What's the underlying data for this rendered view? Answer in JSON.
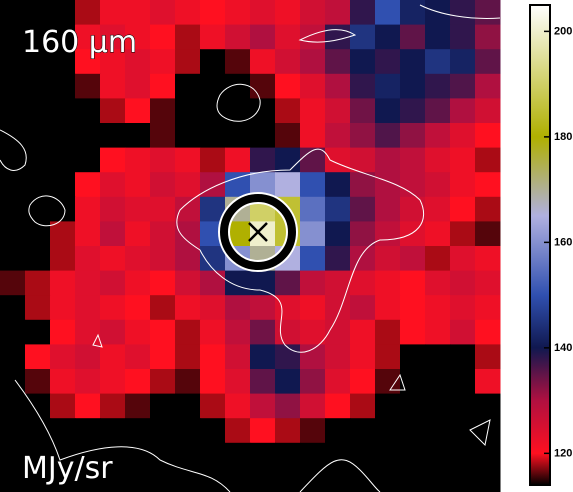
{
  "chart_data": {
    "type": "heatmap",
    "title": "160 μm",
    "annotation": "MJy/sr",
    "colorbar": {
      "lim": [
        114,
        205
      ],
      "ticks": [
        120,
        140,
        160,
        180,
        200
      ]
    },
    "colormap": [
      [
        114,
        "#000000"
      ],
      [
        120,
        "#ff1020"
      ],
      [
        130,
        "#b01040"
      ],
      [
        140,
        "#101850"
      ],
      [
        150,
        "#3050b0"
      ],
      [
        165,
        "#b0b0e0"
      ],
      [
        180,
        "#b0b000"
      ],
      [
        205,
        "#ffffff"
      ]
    ],
    "z": [
      [
        114,
        114,
        114,
        118,
        122,
        122,
        124,
        122,
        120,
        122,
        124,
        122,
        126,
        128,
        138,
        150,
        142,
        140,
        138,
        135
      ],
      [
        114,
        114,
        114,
        122,
        124,
        122,
        120,
        118,
        122,
        126,
        130,
        124,
        128,
        138,
        145,
        140,
        135,
        140,
        138,
        132
      ],
      [
        114,
        114,
        114,
        120,
        122,
        124,
        122,
        118,
        114,
        116,
        122,
        126,
        130,
        135,
        140,
        138,
        140,
        145,
        142,
        135
      ],
      [
        114,
        114,
        114,
        116,
        122,
        124,
        120,
        114,
        114,
        114,
        116,
        120,
        124,
        130,
        138,
        142,
        140,
        138,
        136,
        130
      ],
      [
        114,
        114,
        114,
        114,
        118,
        120,
        116,
        114,
        114,
        114,
        114,
        118,
        122,
        126,
        134,
        140,
        138,
        135,
        130,
        126
      ],
      [
        114,
        114,
        114,
        114,
        114,
        114,
        116,
        114,
        114,
        114,
        114,
        116,
        122,
        128,
        132,
        136,
        132,
        128,
        124,
        120
      ],
      [
        114,
        114,
        114,
        114,
        120,
        122,
        124,
        122,
        118,
        122,
        138,
        140,
        135,
        124,
        126,
        130,
        128,
        124,
        122,
        118
      ],
      [
        114,
        114,
        114,
        120,
        124,
        122,
        126,
        124,
        130,
        150,
        160,
        165,
        150,
        140,
        132,
        130,
        128,
        126,
        122,
        120
      ],
      [
        114,
        114,
        114,
        122,
        126,
        124,
        124,
        128,
        145,
        170,
        190,
        185,
        155,
        145,
        135,
        130,
        126,
        124,
        120,
        118
      ],
      [
        114,
        114,
        118,
        122,
        128,
        122,
        126,
        130,
        150,
        180,
        200,
        185,
        160,
        140,
        132,
        128,
        124,
        122,
        118,
        116
      ],
      [
        114,
        114,
        118,
        124,
        122,
        124,
        126,
        130,
        145,
        160,
        170,
        165,
        150,
        138,
        130,
        126,
        128,
        118,
        124,
        122
      ],
      [
        116,
        118,
        122,
        124,
        126,
        122,
        120,
        126,
        130,
        140,
        140,
        135,
        128,
        126,
        124,
        122,
        120,
        124,
        126,
        124
      ],
      [
        114,
        118,
        122,
        124,
        122,
        120,
        118,
        122,
        124,
        130,
        128,
        124,
        122,
        126,
        128,
        122,
        120,
        122,
        124,
        122
      ],
      [
        114,
        114,
        120,
        124,
        126,
        122,
        120,
        118,
        122,
        128,
        134,
        126,
        124,
        126,
        122,
        118,
        120,
        122,
        126,
        120
      ],
      [
        114,
        120,
        124,
        126,
        122,
        124,
        120,
        118,
        120,
        126,
        140,
        138,
        130,
        126,
        122,
        118,
        114,
        114,
        114,
        118
      ],
      [
        114,
        116,
        122,
        124,
        122,
        120,
        118,
        116,
        120,
        124,
        135,
        140,
        132,
        124,
        120,
        116,
        114,
        114,
        114,
        122
      ],
      [
        114,
        114,
        118,
        120,
        118,
        116,
        114,
        114,
        118,
        122,
        128,
        132,
        126,
        120,
        118,
        114,
        114,
        114,
        114,
        114
      ],
      [
        114,
        114,
        114,
        114,
        114,
        114,
        114,
        114,
        114,
        118,
        120,
        118,
        116,
        114,
        114,
        114,
        114,
        114,
        114,
        114
      ],
      [
        114,
        114,
        114,
        114,
        114,
        114,
        114,
        114,
        114,
        114,
        114,
        114,
        114,
        114,
        114,
        114,
        114,
        114,
        114,
        114
      ],
      [
        114,
        114,
        114,
        114,
        114,
        114,
        114,
        114,
        114,
        114,
        114,
        114,
        114,
        114,
        114,
        114,
        114,
        114,
        114,
        114
      ]
    ]
  }
}
